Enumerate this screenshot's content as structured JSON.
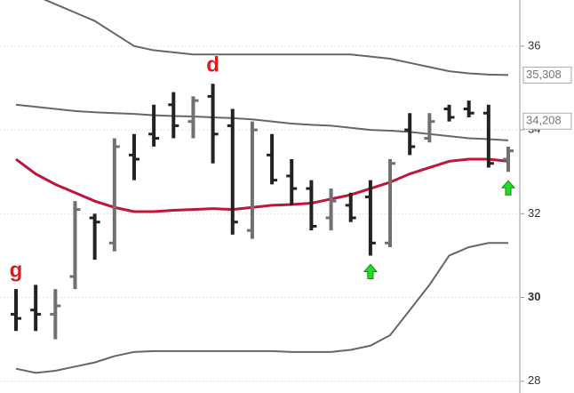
{
  "chart_data": {
    "type": "ohlc",
    "categories": [
      null,
      null,
      null,
      null,
      null,
      null,
      null,
      null,
      null,
      null,
      null,
      null,
      null,
      null,
      null,
      null,
      null,
      null,
      null,
      null,
      null,
      null,
      null,
      null,
      null,
      null
    ],
    "open": [
      29.6,
      29.7,
      29.6,
      30.5,
      31.9,
      31.3,
      33.4,
      33.9,
      34.6,
      34.2,
      34.8,
      34.1,
      31.6,
      33.4,
      32.9,
      32.6,
      31.9,
      32.2,
      32.4,
      31.3,
      34.0,
      33.8,
      34.5,
      34.5,
      34.4,
      33.3
    ],
    "high": [
      30.2,
      30.3,
      30.2,
      32.3,
      32.0,
      33.8,
      33.9,
      34.6,
      34.9,
      34.8,
      35.1,
      34.5,
      34.2,
      33.9,
      33.3,
      32.8,
      32.6,
      32.5,
      32.8,
      33.3,
      34.4,
      34.4,
      34.6,
      34.7,
      34.6,
      33.6
    ],
    "low": [
      29.2,
      29.2,
      29.0,
      30.2,
      30.9,
      31.1,
      32.8,
      33.6,
      33.8,
      33.8,
      33.2,
      31.5,
      31.4,
      32.7,
      32.2,
      31.6,
      31.6,
      31.8,
      31.0,
      31.2,
      33.4,
      33.7,
      34.2,
      34.3,
      33.1,
      33.0
    ],
    "close": [
      29.5,
      29.6,
      29.8,
      32.1,
      31.8,
      33.6,
      33.3,
      33.8,
      34.1,
      34.7,
      33.9,
      31.8,
      34.0,
      32.8,
      32.6,
      31.7,
      32.3,
      31.9,
      31.3,
      33.2,
      33.6,
      34.2,
      34.3,
      34.4,
      33.2,
      33.5
    ],
    "up_color": "#707070",
    "down_color": "#222222",
    "lines": [
      {
        "name": "upper-band",
        "color": "#666666",
        "values": [
          37.3,
          37.2,
          37.0,
          36.8,
          36.6,
          36.3,
          36.0,
          35.9,
          35.85,
          35.8,
          35.8,
          35.8,
          35.8,
          35.8,
          35.8,
          35.8,
          35.8,
          35.8,
          35.75,
          35.7,
          35.6,
          35.5,
          35.4,
          35.35,
          35.32,
          35.31
        ]
      },
      {
        "name": "middle-band",
        "color": "#666666",
        "values": [
          34.6,
          34.55,
          34.5,
          34.45,
          34.42,
          34.4,
          34.38,
          34.35,
          34.33,
          34.32,
          34.3,
          34.28,
          34.25,
          34.2,
          34.15,
          34.12,
          34.1,
          34.05,
          34.0,
          33.98,
          33.95,
          33.9,
          33.85,
          33.8,
          33.78,
          33.75
        ]
      },
      {
        "name": "lower-band",
        "color": "#666666",
        "values": [
          28.3,
          28.2,
          28.25,
          28.35,
          28.45,
          28.6,
          28.7,
          28.72,
          28.72,
          28.72,
          28.72,
          28.72,
          28.72,
          28.72,
          28.7,
          28.7,
          28.7,
          28.75,
          28.85,
          29.1,
          29.7,
          30.3,
          31.0,
          31.2,
          31.3,
          31.3
        ]
      },
      {
        "name": "moving-average",
        "color": "#c0143c",
        "values": [
          33.3,
          32.95,
          32.7,
          32.5,
          32.3,
          32.15,
          32.05,
          32.05,
          32.08,
          32.1,
          32.12,
          32.1,
          32.15,
          32.2,
          32.22,
          32.25,
          32.35,
          32.45,
          32.6,
          32.75,
          32.95,
          33.1,
          33.25,
          33.3,
          33.3,
          33.25
        ]
      }
    ],
    "price_labels": [
      {
        "value": 35.308,
        "label": "35,308"
      },
      {
        "value": 34.208,
        "label": "34,208"
      }
    ],
    "annotations": [
      {
        "text": "g",
        "index": 0
      },
      {
        "text": "d",
        "index": 10
      }
    ],
    "signals": [
      18,
      25
    ],
    "ylim": [
      27.72,
      37.1
    ],
    "yticks": [
      28,
      30,
      32,
      34,
      36
    ],
    "grid": true
  }
}
